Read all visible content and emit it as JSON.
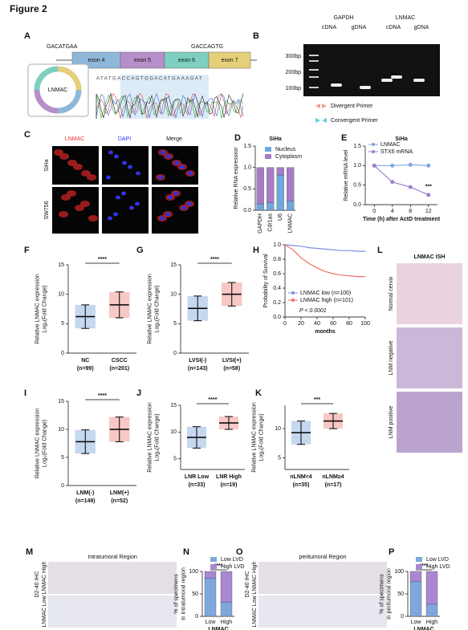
{
  "title": "Figure 2",
  "panel_a": {
    "label": "A",
    "seq_left": "GACATGAA",
    "seq_right": "GACCAGTG",
    "exons": [
      "exon 4",
      "exon 5",
      "exon 6",
      "exon 7"
    ],
    "circle_label": "LNMAC",
    "chromatogram": "ATATGACCAGTGGACATGAAAGAT"
  },
  "panel_b": {
    "label": "B",
    "genes": [
      "GAPDH",
      "LNMAC"
    ],
    "lanes": [
      "cDNA",
      "gDNA",
      "cDNA",
      "gDNA"
    ],
    "markers": [
      "300bp",
      "200bp",
      "100bp"
    ],
    "legend": [
      "Divergent Primer",
      "Convergent Primer"
    ]
  },
  "panel_c": {
    "label": "C",
    "columns": [
      "LNMAC",
      "DAPI",
      "Merge"
    ],
    "rows": [
      "SiHa",
      "SW756"
    ]
  },
  "panel_l": {
    "label": "L",
    "title": "LNMAC ISH",
    "rows": [
      "Normal cervix",
      "LNM negative",
      "LNM positive"
    ]
  },
  "panel_m": {
    "label": "M",
    "title": "Intratumoral Region",
    "stain": "D2-40 IHC",
    "rows": [
      "LNMAC High",
      "LNMAC Low"
    ]
  },
  "panel_o": {
    "label": "O",
    "title": "peritumoral Region",
    "stain": "D2-40 IHC",
    "rows": [
      "LNMAC High",
      "LNMAC Low"
    ]
  },
  "chart_data": [
    {
      "type": "bar",
      "label": "D",
      "title": "SiHa",
      "ylabel": [
        "Relative RNA expression"
      ],
      "categories": [
        "GAPDH",
        "Cdr1as",
        "U6",
        "LNMAC"
      ],
      "series": [
        {
          "name": "Nucleus",
          "color": "#6fa8dc",
          "values": [
            0.15,
            0.18,
            0.82,
            0.22
          ]
        },
        {
          "name": "Cytoplasm",
          "color": "#a57cc5",
          "values": [
            0.85,
            0.82,
            0.18,
            0.78
          ]
        }
      ],
      "ylim": [
        0,
        1.5
      ],
      "yticks": [
        {
          "value": 0,
          "label": "0.0"
        },
        {
          "value": 0.5,
          "label": "0.5"
        },
        {
          "value": 1,
          "label": "1.0"
        },
        {
          "value": 1.5,
          "label": "1.5"
        }
      ]
    },
    {
      "type": "line",
      "label": "E",
      "title": "SiHa",
      "ylabel": [
        "Relative mRNA level"
      ],
      "xlabel": "Time (h) after ActD treatment",
      "x": [
        0,
        4,
        8,
        12
      ],
      "series": [
        {
          "name": "LNMAC",
          "color": "#7fa7e0",
          "values": [
            1,
            1,
            1.02,
            1
          ]
        },
        {
          "name": "STX6 mRNA",
          "color": "#a17fd0",
          "values": [
            1,
            0.58,
            0.45,
            0.25
          ]
        }
      ],
      "xlim": [
        -2,
        14
      ],
      "xticks": [
        0,
        4,
        8,
        12
      ],
      "ylim": [
        0,
        1.5
      ],
      "yticks": [
        {
          "value": 0,
          "label": "0.0"
        },
        {
          "value": 0.5,
          "label": "0.5"
        },
        {
          "value": 1,
          "label": "1.0"
        },
        {
          "value": 1.5,
          "label": "1.5"
        }
      ],
      "legend": "upper left",
      "markers": true,
      "annotation": "***"
    },
    {
      "type": "dot",
      "label": "F",
      "ylabel": [
        "Relative LNMAC expression",
        "Log₂(Fold Change)"
      ],
      "categories": [
        "NC",
        "CSCC"
      ],
      "n_labels": [
        "(n=99)",
        "(n=201)"
      ],
      "means": [
        6.2,
        8.2
      ],
      "sd": [
        2,
        2.2
      ],
      "colors": [
        "#5b8fd1",
        "#e8605a"
      ],
      "ylim": [
        0,
        15
      ],
      "yticks": [
        0,
        5,
        10,
        15
      ],
      "significance": "****"
    },
    {
      "type": "dot",
      "label": "G",
      "ylabel": [
        "Relative LNMAC expression",
        "Log₂(Fold Change)"
      ],
      "categories": [
        "LVSI(-)",
        "LVSI(+)"
      ],
      "n_labels": [
        "(n=143)",
        "(n=58)"
      ],
      "means": [
        7.6,
        10
      ],
      "sd": [
        2.1,
        2
      ],
      "colors": [
        "#5b8fd1",
        "#e8605a"
      ],
      "ylim": [
        0,
        15
      ],
      "yticks": [
        0,
        5,
        10,
        15
      ],
      "significance": "****"
    },
    {
      "type": "line",
      "label": "H",
      "ylabel": [
        "Probability of Survival"
      ],
      "xlabel": "months",
      "x": [
        0,
        10,
        20,
        30,
        40,
        50,
        60,
        70,
        80,
        90,
        100
      ],
      "series": [
        {
          "name": "LNMAC low (n=100)",
          "color": "#7b8fe0",
          "values": [
            1,
            0.99,
            0.98,
            0.96,
            0.95,
            0.94,
            0.93,
            0.92,
            0.92,
            0.91,
            0.91
          ]
        },
        {
          "name": "LNMAC high (n=101)",
          "color": "#ef7065",
          "values": [
            1,
            0.93,
            0.82,
            0.74,
            0.68,
            0.63,
            0.6,
            0.58,
            0.57,
            0.56,
            0.56
          ]
        }
      ],
      "xlim": [
        0,
        100
      ],
      "xticks": [
        0,
        20,
        40,
        60,
        80,
        100
      ],
      "ylim": [
        0,
        1
      ],
      "yticks": [
        {
          "value": 0,
          "label": "0.0"
        },
        {
          "value": 0.2,
          "label": "0.2"
        },
        {
          "value": 0.4,
          "label": "0.4"
        },
        {
          "value": 0.6,
          "label": "0.6"
        },
        {
          "value": 0.8,
          "label": "0.8"
        },
        {
          "value": 1,
          "label": "1.0"
        }
      ],
      "legend": "lower left",
      "annotation": "P < 0.0001"
    },
    {
      "type": "dot",
      "label": "I",
      "ylabel": [
        "Relative LNMAC expression",
        "Log₂(Fold Change)"
      ],
      "categories": [
        "LNM(-)",
        "LNM(+)"
      ],
      "n_labels": [
        "(n=149)",
        "(n=52)"
      ],
      "means": [
        7.8,
        10
      ],
      "sd": [
        2.1,
        2.2
      ],
      "colors": [
        "#5b8fd1",
        "#e8605a"
      ],
      "ylim": [
        0,
        15
      ],
      "yticks": [
        0,
        5,
        10,
        15
      ],
      "significance": "****"
    },
    {
      "type": "dot",
      "label": "J",
      "ylabel": [
        "Relative LNMAC expression",
        "Log₂(Fold Change)"
      ],
      "categories": [
        "LNR Low",
        "LNR High"
      ],
      "n_labels": [
        "(n=33)",
        "(n=19)"
      ],
      "means": [
        9,
        11.7
      ],
      "sd": [
        2,
        1.2
      ],
      "colors": [
        "#5b8fd1",
        "#e8605a"
      ],
      "ylim": [
        3,
        15
      ],
      "yticks": [
        5,
        10,
        15
      ],
      "significance": "****"
    },
    {
      "type": "dot",
      "label": "K",
      "ylabel": [
        "Relative LNMAC expression",
        "Log₂(Fold Change)"
      ],
      "categories": [
        "nLNM<4",
        "nLNM≥4"
      ],
      "n_labels": [
        "(n=35)",
        "(n=17)"
      ],
      "means": [
        9.3,
        11.3
      ],
      "sd": [
        2,
        1.3
      ],
      "colors": [
        "#5b8fd1",
        "#e8605a"
      ],
      "ylim": [
        3,
        14
      ],
      "yticks": [
        5,
        10
      ],
      "significance": "***"
    },
    {
      "type": "bar",
      "label": "N",
      "ylabel": [
        "% of specimens",
        "in intratumoral region"
      ],
      "xlabel": "LNMAC",
      "categories": [
        "Low",
        "High"
      ],
      "series": [
        {
          "name": "Low LVD",
          "color": "#7fa7dd",
          "values": [
            85,
            32
          ]
        },
        {
          "name": "High LVD",
          "color": "#a987d1",
          "values": [
            15,
            68
          ]
        }
      ],
      "ylim": [
        0,
        100
      ],
      "yticks": [
        0,
        50,
        100
      ],
      "significance": "****"
    },
    {
      "type": "bar",
      "label": "P",
      "ylabel": [
        "% of specimens",
        "in peritumoral region"
      ],
      "xlabel": "LNMAC",
      "categories": [
        "Low",
        "High"
      ],
      "series": [
        {
          "name": "Low LVD",
          "color": "#7fa7dd",
          "values": [
            77,
            27
          ]
        },
        {
          "name": "High LVD",
          "color": "#a987d1",
          "values": [
            23,
            73
          ]
        }
      ],
      "ylim": [
        0,
        100
      ],
      "yticks": [
        0,
        50,
        100
      ],
      "significance": "****"
    }
  ]
}
